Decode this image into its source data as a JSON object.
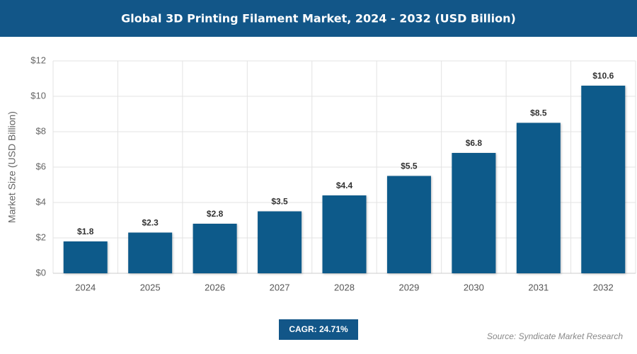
{
  "chart_data": {
    "type": "bar",
    "title": "Global 3D Printing Filament Market, 2024 - 2032 (USD Billion)",
    "y_label": "Market Size (USD Billion)",
    "categories": [
      "2024",
      "2025",
      "2026",
      "2027",
      "2028",
      "2029",
      "2030",
      "2031",
      "2032"
    ],
    "values": [
      1.8,
      2.3,
      2.8,
      3.5,
      4.4,
      5.5,
      6.8,
      8.5,
      10.6
    ],
    "value_labels": [
      "$1.8",
      "$2.3",
      "$2.8",
      "$3.5",
      "$4.4",
      "$5.5",
      "$6.8",
      "$8.5",
      "$10.6"
    ],
    "color": "#0e5a8a",
    "ylim": [
      0,
      12
    ],
    "yticks": [
      {
        "value": 0,
        "label": "$0"
      },
      {
        "value": 2,
        "label": "$2"
      },
      {
        "value": 4,
        "label": "$4"
      },
      {
        "value": 6,
        "label": "$6"
      },
      {
        "value": 8,
        "label": "$8"
      },
      {
        "value": 10,
        "label": "$10"
      },
      {
        "value": 12,
        "label": "$12"
      }
    ],
    "grid": true,
    "annotation": "CAGR: 24.71%",
    "source": "Source: Syndicate Market Research"
  }
}
